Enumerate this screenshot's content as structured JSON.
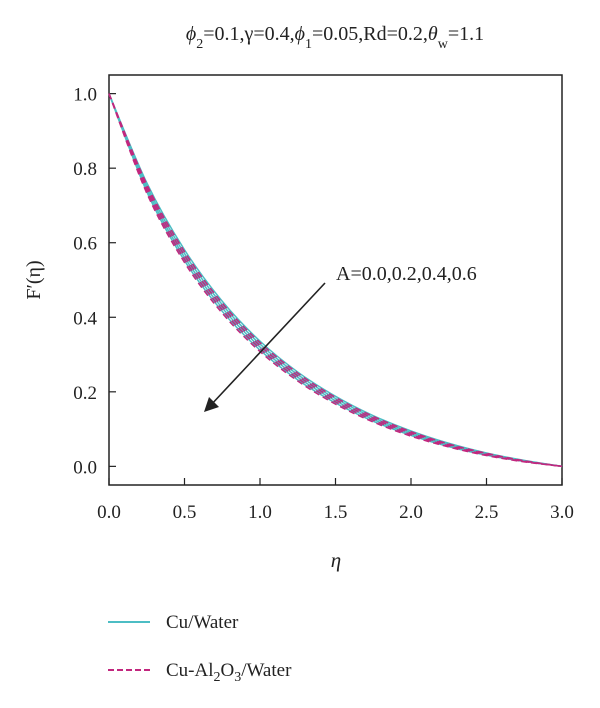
{
  "chart_data": {
    "type": "line",
    "title_parts": [
      {
        "t": "ϕ",
        "i": true
      },
      {
        "t": "2",
        "sub": true
      },
      {
        "t": "=0.1,γ=0.4,"
      },
      {
        "t": "ϕ",
        "i": true
      },
      {
        "t": "1",
        "sub": true
      },
      {
        "t": "=0.05,Rd=0.2,"
      },
      {
        "t": "θ",
        "i": true
      },
      {
        "t": "w",
        "sub": true
      },
      {
        "t": "=1.1"
      }
    ],
    "xlabel": "η",
    "ylabel": "F′(η)",
    "xlim": [
      0,
      3
    ],
    "ylim": [
      -0.05,
      1.05
    ],
    "xticks": [
      "0.0",
      "0.5",
      "1.0",
      "1.5",
      "2.0",
      "2.5",
      "3.0"
    ],
    "yticks": [
      "0.0",
      "0.2",
      "0.4",
      "0.6",
      "0.8",
      "1.0"
    ],
    "grid": false,
    "annotation": "A=0.0,0.2,0.4,0.6",
    "colors": {
      "cu_water": "#4cbdc4",
      "cu_al2o3_water": "#c2277e",
      "axis": "#222222"
    },
    "x": [
      0,
      0.25,
      0.5,
      0.75,
      1.0,
      1.25,
      1.5,
      1.75,
      2.0,
      2.25,
      2.5,
      2.75,
      3.0
    ],
    "series": [
      {
        "group": "Cu/Water",
        "A": 0.0,
        "values": [
          1.0,
          0.761,
          0.581,
          0.443,
          0.336,
          0.253,
          0.188,
          0.136,
          0.095,
          0.062,
          0.036,
          0.016,
          0.0
        ]
      },
      {
        "group": "Cu/Water",
        "A": 0.2,
        "values": [
          1.0,
          0.753,
          0.571,
          0.434,
          0.328,
          0.246,
          0.182,
          0.131,
          0.091,
          0.059,
          0.034,
          0.015,
          0.0
        ]
      },
      {
        "group": "Cu/Water",
        "A": 0.4,
        "values": [
          1.0,
          0.745,
          0.561,
          0.425,
          0.32,
          0.239,
          0.176,
          0.126,
          0.087,
          0.056,
          0.032,
          0.014,
          0.0
        ]
      },
      {
        "group": "Cu/Water",
        "A": 0.6,
        "values": [
          1.0,
          0.737,
          0.552,
          0.416,
          0.312,
          0.232,
          0.17,
          0.121,
          0.083,
          0.053,
          0.03,
          0.013,
          0.0
        ]
      },
      {
        "group": "Cu-Al2O3/Water",
        "A": 0.0,
        "values": [
          1.0,
          0.757,
          0.576,
          0.438,
          0.332,
          0.25,
          0.185,
          0.134,
          0.093,
          0.06,
          0.035,
          0.015,
          0.0
        ]
      },
      {
        "group": "Cu-Al2O3/Water",
        "A": 0.2,
        "values": [
          1.0,
          0.749,
          0.566,
          0.429,
          0.324,
          0.243,
          0.179,
          0.129,
          0.089,
          0.058,
          0.033,
          0.014,
          0.0
        ]
      },
      {
        "group": "Cu-Al2O3/Water",
        "A": 0.4,
        "values": [
          1.0,
          0.741,
          0.556,
          0.42,
          0.316,
          0.236,
          0.173,
          0.124,
          0.085,
          0.055,
          0.031,
          0.013,
          0.0
        ]
      },
      {
        "group": "Cu-Al2O3/Water",
        "A": 0.6,
        "values": [
          1.0,
          0.733,
          0.547,
          0.411,
          0.308,
          0.229,
          0.167,
          0.119,
          0.081,
          0.052,
          0.029,
          0.012,
          0.0
        ]
      }
    ],
    "legend": [
      {
        "label_parts": [
          {
            "t": "Cu/Water"
          }
        ],
        "style": "solid",
        "color": "#4cbdc4"
      },
      {
        "label_parts": [
          {
            "t": "Cu-Al"
          },
          {
            "t": "2",
            "sub": true
          },
          {
            "t": "O"
          },
          {
            "t": "3",
            "sub": true
          },
          {
            "t": "/Water"
          }
        ],
        "style": "dashed",
        "color": "#c2277e"
      }
    ]
  }
}
